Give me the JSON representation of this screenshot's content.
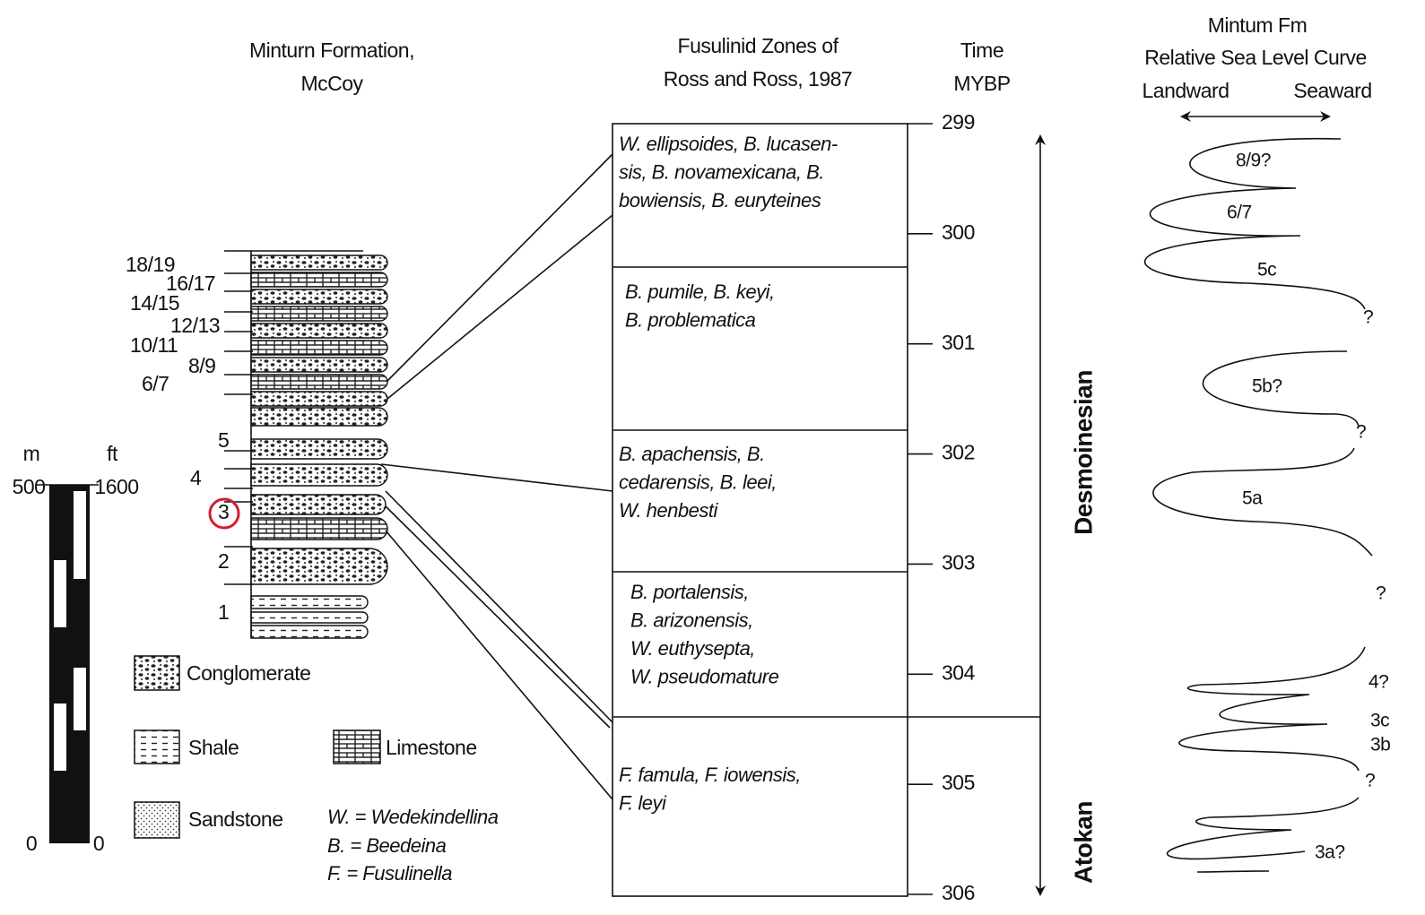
{
  "strat_column": {
    "title": [
      "Minturn Formation,",
      "McCoy"
    ],
    "cycle_labels": [
      "18/19",
      "16/17",
      "14/15",
      "12/13",
      "10/11",
      "8/9",
      "6/7",
      "5",
      "4",
      "3",
      "2",
      "1"
    ]
  },
  "scale_bar": {
    "m_label": "m",
    "ft_label": "ft",
    "m_top": "500",
    "ft_top": "1600",
    "m_bottom": "0",
    "ft_bottom": "0"
  },
  "legend": {
    "items": [
      "Conglomerate",
      "Shale",
      "Limestone",
      "Sandstone"
    ],
    "abbreviations": [
      "W. = Wedekindellina",
      "B. = Beedeina",
      "F. = Fusulinella"
    ]
  },
  "zones": {
    "title": [
      "Fusulinid Zones of",
      "Ross and Ross, 1987"
    ],
    "boxes": [
      [
        "W. ellipsoides, B. lucasen-",
        "sis, B. novamexicana, B.",
        "bowiensis, B. euryteines"
      ],
      [
        "B. pumile, B. keyi,",
        "B. problematica"
      ],
      [
        "B. apachensis, B.",
        "cedarensis, B. leei,",
        "W. henbesti"
      ],
      [
        "B. portalensis,",
        "B. arizonensis,",
        "W. euthysepta,",
        "W. pseudomature"
      ],
      [
        "F. famula, F. iowensis,",
        "F. leyi"
      ]
    ]
  },
  "time": {
    "title": [
      "Time",
      "MYBP"
    ],
    "ticks": [
      299,
      300,
      301,
      302,
      303,
      304,
      305,
      306
    ]
  },
  "stages": [
    "Desmoinesian",
    "Atokan"
  ],
  "sea_level": {
    "title": [
      "Mintum Fm",
      "Relative Sea Level Curve"
    ],
    "left": "Landward",
    "right": "Seaward",
    "labels": [
      "8/9?",
      "6/7",
      "5c",
      "?",
      "5b?",
      "?",
      "5a",
      "?",
      "4?",
      "3c",
      "3b",
      "?",
      "3a?"
    ]
  }
}
